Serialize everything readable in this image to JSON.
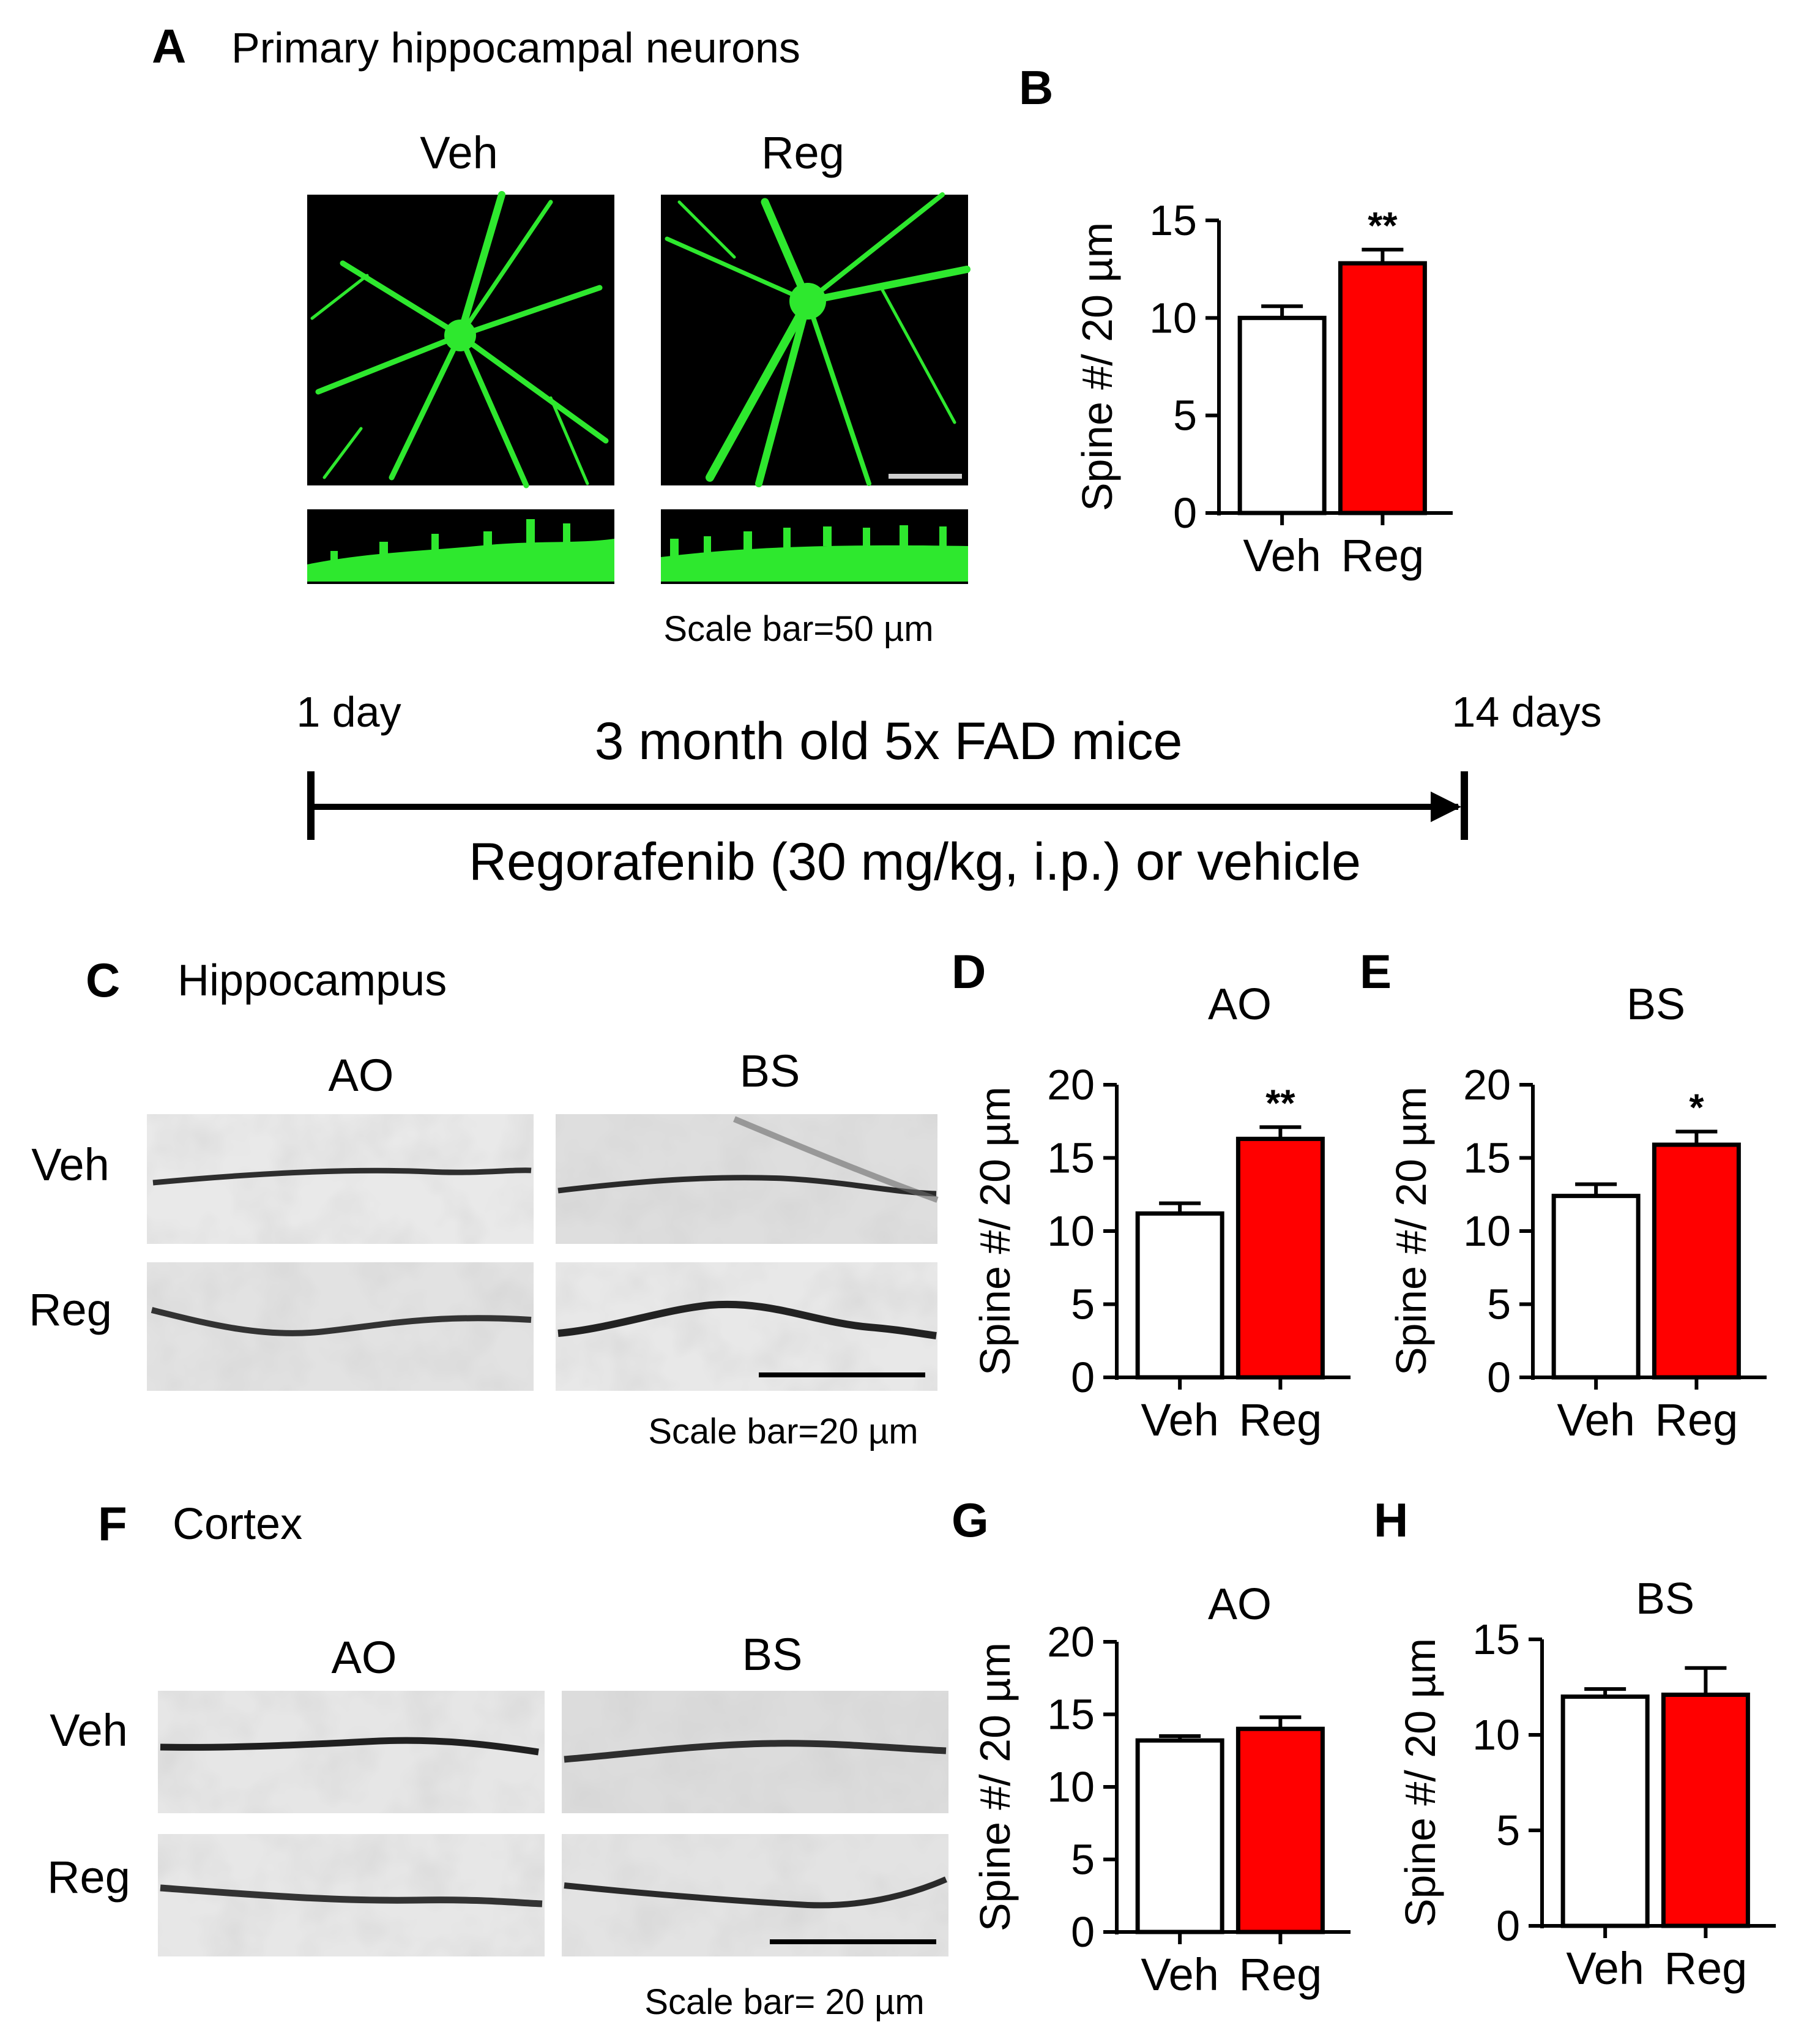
{
  "panelA": {
    "letter": "A",
    "title": "Primary hippocampal neurons",
    "col_labels": [
      "Veh",
      "Reg"
    ],
    "scale_bar": "Scale bar=50 µm"
  },
  "timeline": {
    "start": "1 day",
    "end": "14 days",
    "top_text": "3 month old 5x FAD mice",
    "bottom_text": "Regorafenib (30 mg/kg, i.p.) or vehicle"
  },
  "panelC": {
    "letter": "C",
    "title": "Hippocampus",
    "col_labels": [
      "AO",
      "BS"
    ],
    "row_labels": [
      "Veh",
      "Reg"
    ],
    "scale_bar": "Scale bar=20 µm"
  },
  "panelF": {
    "letter": "F",
    "title": "Cortex",
    "col_labels": [
      "AO",
      "BS"
    ],
    "row_labels": [
      "Veh",
      "Reg"
    ],
    "scale_bar": "Scale bar= 20 µm"
  },
  "colors": {
    "veh_fill": "#ffffff",
    "reg_fill": "#ff0000",
    "neuron_green": "#2ee82e",
    "micrograph_bg": "#000000"
  },
  "chart_data": [
    {
      "id": "B",
      "letter": "B",
      "type": "bar",
      "title": "",
      "ylabel": "Spine #/ 20 µm",
      "ylim": [
        0,
        15
      ],
      "yticks": [
        0,
        5,
        10,
        15
      ],
      "categories": [
        "Veh",
        "Reg"
      ],
      "values": [
        10.0,
        12.8
      ],
      "errors": [
        0.6,
        0.7
      ],
      "significance": [
        "",
        "**"
      ]
    },
    {
      "id": "D",
      "letter": "D",
      "type": "bar",
      "title": "AO",
      "ylabel": "Spine #/ 20 µm",
      "ylim": [
        0,
        20
      ],
      "yticks": [
        0,
        5,
        10,
        15,
        20
      ],
      "categories": [
        "Veh",
        "Reg"
      ],
      "values": [
        11.2,
        16.3
      ],
      "errors": [
        0.7,
        0.8
      ],
      "significance": [
        "",
        "**"
      ]
    },
    {
      "id": "E",
      "letter": "E",
      "type": "bar",
      "title": "BS",
      "ylabel": "Spine #/ 20 µm",
      "ylim": [
        0,
        20
      ],
      "yticks": [
        0,
        5,
        10,
        15,
        20
      ],
      "categories": [
        "Veh",
        "Reg"
      ],
      "values": [
        12.4,
        15.9
      ],
      "errors": [
        0.8,
        0.9
      ],
      "significance": [
        "",
        "*"
      ]
    },
    {
      "id": "G",
      "letter": "G",
      "type": "bar",
      "title": "AO",
      "ylabel": "Spine #/ 20 µm",
      "ylim": [
        0,
        20
      ],
      "yticks": [
        0,
        5,
        10,
        15,
        20
      ],
      "categories": [
        "Veh",
        "Reg"
      ],
      "values": [
        13.2,
        14.0
      ],
      "errors": [
        0.3,
        0.8
      ],
      "significance": [
        "",
        ""
      ]
    },
    {
      "id": "H",
      "letter": "H",
      "type": "bar",
      "title": "BS",
      "ylabel": "Spine #/ 20 µm",
      "ylim": [
        0,
        15
      ],
      "yticks": [
        0,
        5,
        10,
        15
      ],
      "categories": [
        "Veh",
        "Reg"
      ],
      "values": [
        12.0,
        12.1
      ],
      "errors": [
        0.4,
        1.4
      ],
      "significance": [
        "",
        ""
      ]
    }
  ]
}
